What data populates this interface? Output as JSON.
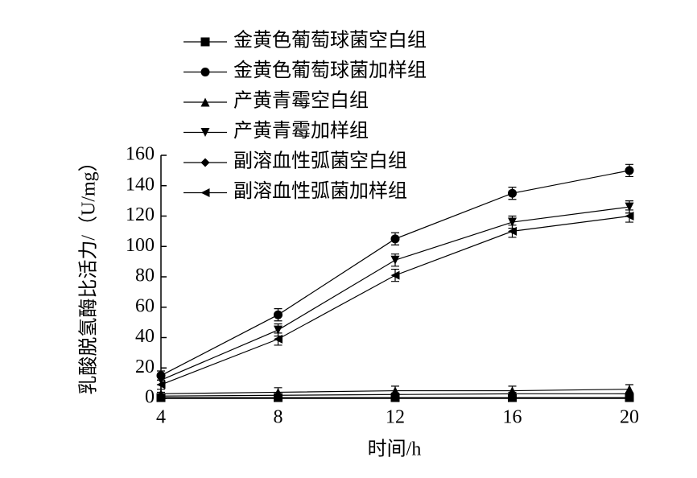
{
  "chart_data": {
    "type": "line",
    "x_label": "时间/h",
    "y_label": "乳酸脱氢酶比活力/（U/mg）",
    "x": [
      4,
      8,
      12,
      16,
      20
    ],
    "xlim": [
      4,
      20
    ],
    "xticks": [
      4,
      8,
      12,
      16,
      20
    ],
    "ylim": [
      0,
      160
    ],
    "yticks": [
      0,
      20,
      40,
      60,
      80,
      100,
      120,
      140,
      160
    ],
    "legend": "top-left",
    "series": [
      {
        "name": "金黄色葡萄球菌空白组",
        "color": "#000000",
        "marker": "square",
        "values": [
          0.5,
          0.5,
          0.5,
          0.5,
          0.5
        ],
        "errors": [
          1,
          1,
          1,
          1,
          1
        ]
      },
      {
        "name": "金黄色葡萄球菌加样组",
        "color": "#000000",
        "marker": "circle",
        "values": [
          15,
          55,
          105,
          135,
          150
        ],
        "errors": [
          3,
          4,
          4,
          4,
          4
        ]
      },
      {
        "name": "产黄青霉空白组",
        "color": "#000000",
        "marker": "triangle-up",
        "values": [
          3,
          4,
          5,
          5,
          6
        ],
        "errors": [
          1,
          3,
          3,
          3,
          3
        ]
      },
      {
        "name": "产黄青霉加样组",
        "color": "#000000",
        "marker": "triangle-down",
        "values": [
          12,
          45,
          91,
          116,
          126
        ],
        "errors": [
          3,
          4,
          4,
          4,
          4
        ]
      },
      {
        "name": "副溶血性弧菌空白组",
        "color": "#000000",
        "marker": "diamond",
        "values": [
          1.5,
          2,
          2.5,
          3,
          3
        ],
        "errors": [
          1,
          1,
          1,
          1,
          1
        ]
      },
      {
        "name": "副溶血性弧菌加样组",
        "color": "#000000",
        "marker": "triangle-left",
        "values": [
          9,
          39,
          81,
          110,
          120
        ],
        "errors": [
          3,
          4,
          4,
          4,
          4
        ]
      }
    ]
  }
}
